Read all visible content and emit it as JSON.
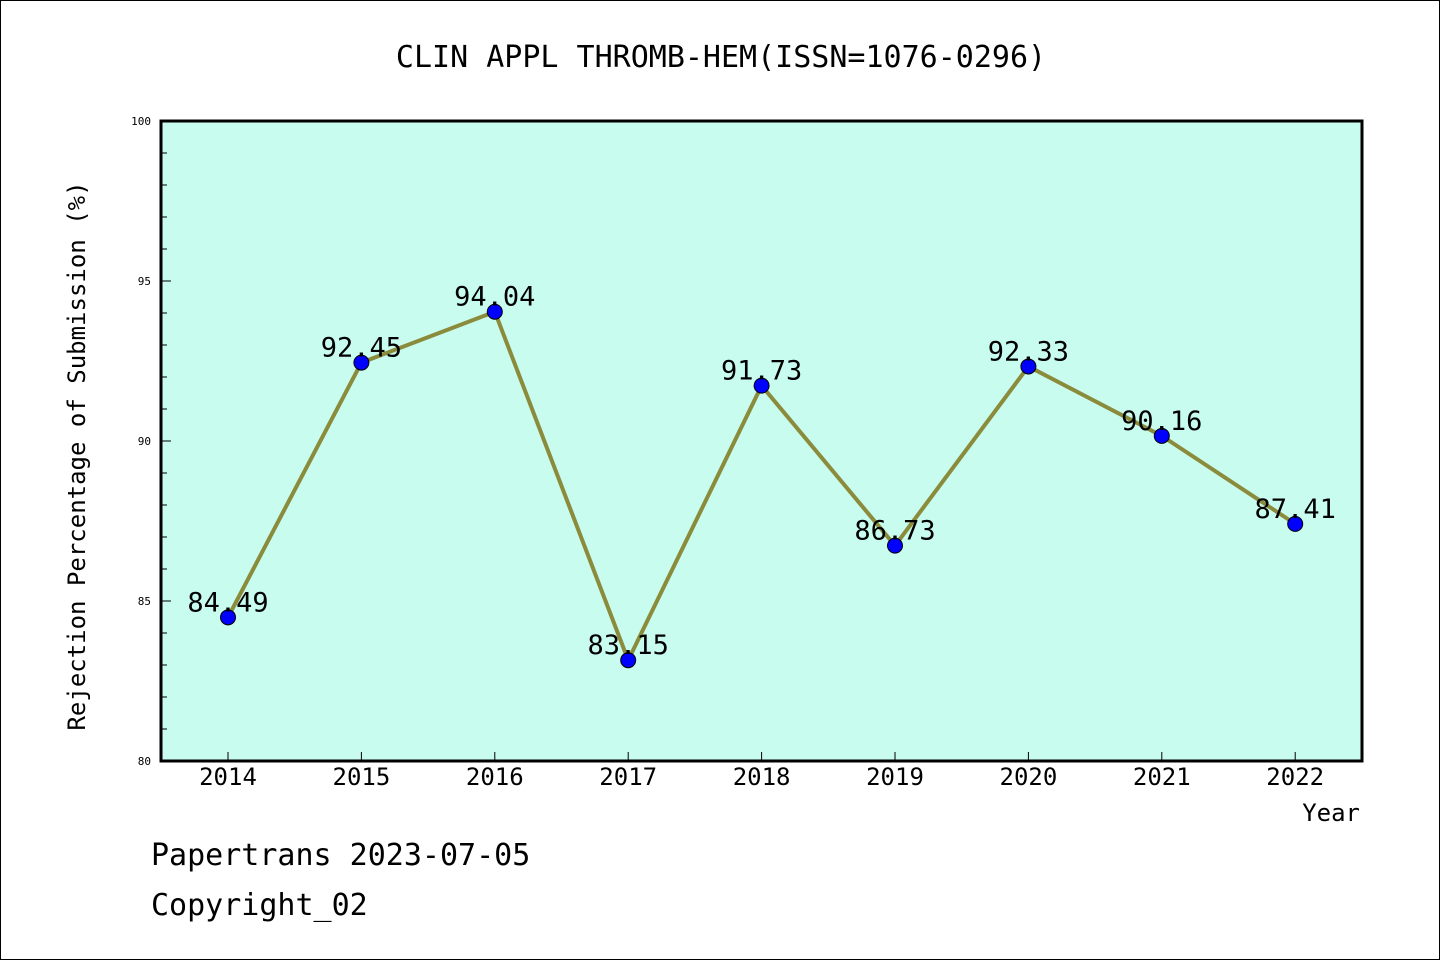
{
  "chart_data": {
    "type": "line",
    "title": "CLIN APPL THROMB-HEM(ISSN=1076-0296)",
    "xlabel": "Year",
    "ylabel": "Rejection Percentage of Submission (%)",
    "x": [
      "2014",
      "2015",
      "2016",
      "2017",
      "2018",
      "2019",
      "2020",
      "2021",
      "2022"
    ],
    "series": [
      {
        "values": [
          84.49,
          92.45,
          94.04,
          83.15,
          91.73,
          86.73,
          92.33,
          90.16,
          87.41
        ],
        "labels": [
          "84.49",
          "92.45",
          "94.04",
          "83.15",
          "91.73",
          "86.73",
          "92.33",
          "90.16",
          "87.41"
        ]
      }
    ],
    "ylim": [
      80,
      100
    ],
    "yticks": [
      "80",
      "85",
      "90",
      "95",
      "100"
    ],
    "grid": false,
    "colors": {
      "plot_background": "#c8fcee",
      "line": "#8b8b3c",
      "marker": "#0000ff"
    }
  },
  "footer": {
    "line1": "Papertrans 2023-07-05",
    "line2": "Copyright_02"
  }
}
